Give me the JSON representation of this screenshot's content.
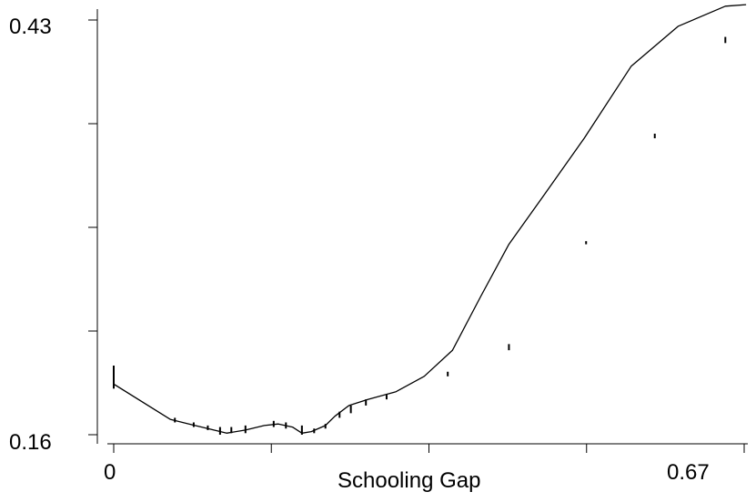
{
  "chart_data": {
    "type": "line",
    "xlabel": "Schooling Gap",
    "ylabel": "",
    "title": "",
    "xlim": [
      0,
      0.67
    ],
    "ylim": [
      0.16,
      0.43
    ],
    "x_tick_labels": [
      "0",
      "0.67"
    ],
    "y_tick_labels": [
      "0.16",
      "0.43"
    ],
    "x_ticks": [
      0,
      0.1675,
      0.335,
      0.5025,
      0.67
    ],
    "y_ticks": [
      0.16,
      0.2275,
      0.295,
      0.3625,
      0.43
    ],
    "grid": false,
    "legend": "none",
    "line_color": "#000000",
    "series": [
      {
        "x": [
          0,
          0.06,
          0.08,
          0.1,
          0.12,
          0.14,
          0.16,
          0.175,
          0.19,
          0.2,
          0.21,
          0.225,
          0.235,
          0.25,
          0.27,
          0.3,
          0.33,
          0.36,
          0.39,
          0.42,
          0.455,
          0.5,
          0.55,
          0.6,
          0.65,
          0.672
        ],
        "y": [
          0.193,
          0.17,
          0.167,
          0.164,
          0.161,
          0.163,
          0.166,
          0.167,
          0.165,
          0.161,
          0.162,
          0.166,
          0.172,
          0.179,
          0.183,
          0.188,
          0.198,
          0.215,
          0.25,
          0.284,
          0.314,
          0.353,
          0.4,
          0.426,
          0.439,
          0.44
        ]
      }
    ],
    "whiskers": [
      {
        "x": 0.0,
        "low": 0.19,
        "high": 0.205
      },
      {
        "x": 0.065,
        "low": 0.168,
        "high": 0.171
      },
      {
        "x": 0.085,
        "low": 0.165,
        "high": 0.168
      },
      {
        "x": 0.1,
        "low": 0.163,
        "high": 0.166
      },
      {
        "x": 0.113,
        "low": 0.16,
        "high": 0.165
      },
      {
        "x": 0.125,
        "low": 0.161,
        "high": 0.165
      },
      {
        "x": 0.14,
        "low": 0.161,
        "high": 0.166
      },
      {
        "x": 0.17,
        "low": 0.165,
        "high": 0.169
      },
      {
        "x": 0.183,
        "low": 0.164,
        "high": 0.168
      },
      {
        "x": 0.2,
        "low": 0.16,
        "high": 0.166
      },
      {
        "x": 0.213,
        "low": 0.161,
        "high": 0.164
      },
      {
        "x": 0.225,
        "low": 0.164,
        "high": 0.167
      },
      {
        "x": 0.24,
        "low": 0.171,
        "high": 0.175
      },
      {
        "x": 0.252,
        "low": 0.174,
        "high": 0.179
      },
      {
        "x": 0.268,
        "low": 0.179,
        "high": 0.183
      },
      {
        "x": 0.29,
        "low": 0.183,
        "high": 0.186
      },
      {
        "x": 0.355,
        "low": 0.198,
        "high": 0.201
      },
      {
        "x": 0.42,
        "low": 0.215,
        "high": 0.219
      },
      {
        "x": 0.502,
        "low": 0.284,
        "high": 0.286
      },
      {
        "x": 0.575,
        "low": 0.353,
        "high": 0.356
      },
      {
        "x": 0.65,
        "low": 0.415,
        "high": 0.419
      }
    ]
  }
}
